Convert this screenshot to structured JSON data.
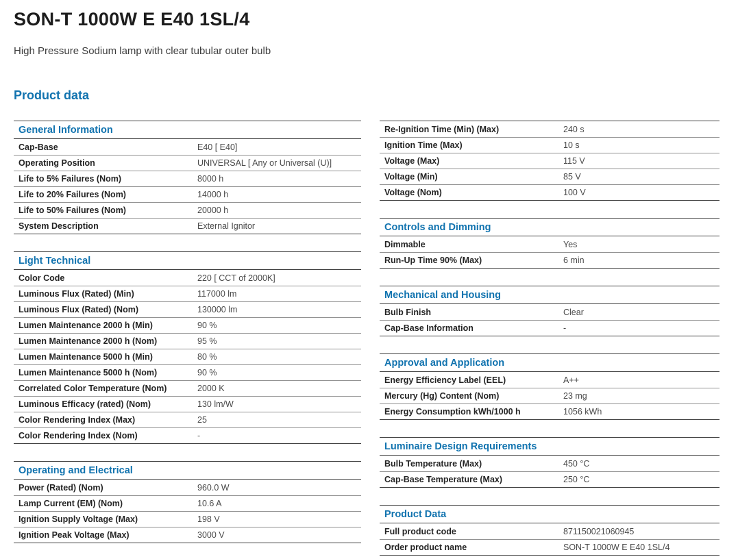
{
  "page": {
    "title": "SON-T 1000W E E40 1SL/4",
    "subtitle": "High Pressure Sodium lamp with clear tubular outer bulb",
    "section_title": "Product data"
  },
  "colors": {
    "accent_blue": "#1173af",
    "title_text": "#1d1d1d",
    "label_text": "#242424",
    "value_text": "#4a4a4a",
    "border_dark": "#3f3f3f",
    "border_light": "#929292"
  },
  "columns": [
    {
      "tables": [
        {
          "header": "General Information",
          "rows": [
            [
              "Cap-Base",
              "E40 [ E40]"
            ],
            [
              "Operating Position",
              "UNIVERSAL [ Any or Universal (U)]"
            ],
            [
              "Life to 5% Failures (Nom)",
              "8000 h"
            ],
            [
              "Life to 20% Failures (Nom)",
              "14000 h"
            ],
            [
              "Life to 50% Failures (Nom)",
              "20000 h"
            ],
            [
              "System Description",
              "External Ignitor"
            ]
          ]
        },
        {
          "header": "Light Technical",
          "rows": [
            [
              "Color Code",
              "220 [ CCT of 2000K]"
            ],
            [
              "Luminous Flux (Rated) (Min)",
              "117000 lm"
            ],
            [
              "Luminous Flux (Rated) (Nom)",
              "130000 lm"
            ],
            [
              "Lumen Maintenance 2000 h (Min)",
              "90 %"
            ],
            [
              "Lumen Maintenance 2000 h (Nom)",
              "95 %"
            ],
            [
              "Lumen Maintenance 5000 h (Min)",
              "80 %"
            ],
            [
              "Lumen Maintenance 5000 h (Nom)",
              "90 %"
            ],
            [
              "Correlated Color Temperature (Nom)",
              "2000 K"
            ],
            [
              "Luminous Efficacy (rated) (Nom)",
              "130 lm/W"
            ],
            [
              "Color Rendering Index (Max)",
              "25"
            ],
            [
              "Color Rendering Index (Nom)",
              "-"
            ]
          ]
        },
        {
          "header": "Operating and Electrical",
          "rows": [
            [
              "Power (Rated) (Nom)",
              "960.0 W"
            ],
            [
              "Lamp Current (EM) (Nom)",
              "10.6 A"
            ],
            [
              "Ignition Supply Voltage (Max)",
              "198 V"
            ],
            [
              "Ignition Peak Voltage (Max)",
              "3000 V"
            ]
          ]
        }
      ]
    },
    {
      "tables": [
        {
          "header": null,
          "rows": [
            [
              "Re-Ignition Time (Min) (Max)",
              "240 s"
            ],
            [
              "Ignition Time (Max)",
              "10 s"
            ],
            [
              "Voltage (Max)",
              "115 V"
            ],
            [
              "Voltage (Min)",
              "85 V"
            ],
            [
              "Voltage (Nom)",
              "100 V"
            ]
          ]
        },
        {
          "header": "Controls and Dimming",
          "rows": [
            [
              "Dimmable",
              "Yes"
            ],
            [
              "Run-Up Time 90% (Max)",
              "6 min"
            ]
          ]
        },
        {
          "header": "Mechanical and Housing",
          "rows": [
            [
              "Bulb Finish",
              "Clear"
            ],
            [
              "Cap-Base Information",
              "-"
            ]
          ]
        },
        {
          "header": "Approval and Application",
          "rows": [
            [
              "Energy Efficiency Label (EEL)",
              "A++"
            ],
            [
              "Mercury (Hg) Content (Nom)",
              "23 mg"
            ],
            [
              "Energy Consumption kWh/1000 h",
              "1056 kWh"
            ]
          ]
        },
        {
          "header": "Luminaire Design Requirements",
          "rows": [
            [
              "Bulb Temperature (Max)",
              "450 °C"
            ],
            [
              "Cap-Base Temperature (Max)",
              "250 °C"
            ]
          ]
        },
        {
          "header": "Product Data",
          "rows": [
            [
              "Full product code",
              "871150021060945"
            ],
            [
              "Order product name",
              "SON-T 1000W E E40 1SL/4"
            ]
          ]
        }
      ]
    }
  ]
}
